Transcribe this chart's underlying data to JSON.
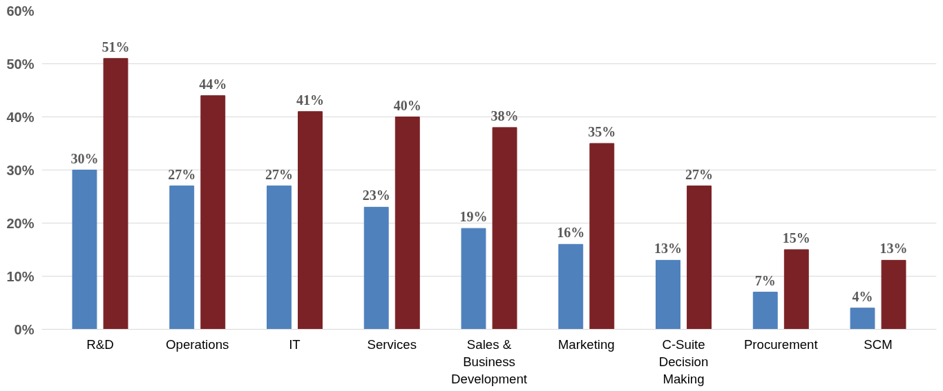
{
  "chart_data": {
    "type": "bar",
    "categories": [
      "R&D",
      "Operations",
      "IT",
      "Services",
      "Sales & Business Development",
      "Marketing",
      "C-Suite Decision Making",
      "Procurement",
      "SCM"
    ],
    "series": [
      {
        "color": "#4f81bd",
        "values": [
          30,
          27,
          27,
          23,
          19,
          16,
          13,
          7,
          4
        ],
        "value_labels": [
          "30%",
          "27%",
          "27%",
          "23%",
          "19%",
          "16%",
          "13%",
          "7%",
          "4%"
        ]
      },
      {
        "color": "#7b2226",
        "values": [
          51,
          44,
          41,
          40,
          38,
          35,
          27,
          15,
          13
        ],
        "value_labels": [
          "51%",
          "44%",
          "41%",
          "40%",
          "38%",
          "35%",
          "27%",
          "15%",
          "13%"
        ]
      }
    ],
    "ylim": [
      0,
      60
    ],
    "yticks": [
      {
        "value": 0,
        "label": "0%"
      },
      {
        "value": 10,
        "label": "10%"
      },
      {
        "value": 20,
        "label": "20%"
      },
      {
        "value": 30,
        "label": "30%"
      },
      {
        "value": 40,
        "label": "40%"
      },
      {
        "value": 50,
        "label": "50%"
      },
      {
        "value": 60,
        "label": "60%"
      }
    ],
    "grid": "y"
  }
}
